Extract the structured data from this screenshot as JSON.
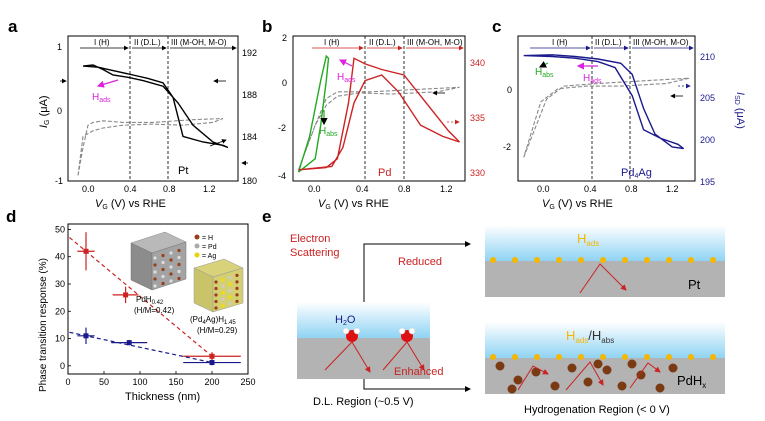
{
  "panels": {
    "a": {
      "letter": "a",
      "regions": [
        "I (H)",
        "II (D.L.)",
        "III (M-OH, M-O)"
      ],
      "label": "Pt",
      "hads": "H",
      "hads_sub": "ads",
      "xlabel": "V",
      "xlabel_sub": "G",
      "xlabel_rest": " (V) vs RHE",
      "ylabel": "I",
      "ylabel_sub": "G",
      "ylabel_rest": " (μA)",
      "xticks": [
        "0.0",
        "0.4",
        "0.8",
        "1.2"
      ],
      "yticks_left": [
        "1",
        "0",
        "-1"
      ],
      "yticks_right": [
        "192",
        "188",
        "184",
        "180"
      ]
    },
    "b": {
      "letter": "b",
      "regions": [
        "I (H)",
        "II (D.L.)",
        "III (M-OH, M-O)"
      ],
      "label": "Pd",
      "hads": "H",
      "hads_sub": "ads",
      "habs": "H",
      "habs_sub": "abs",
      "xlabel": "V",
      "xlabel_sub": "G",
      "xlabel_rest": " (V) vs RHE",
      "xticks": [
        "0.0",
        "0.4",
        "0.8",
        "1.2"
      ],
      "yticks_left": [
        "2",
        "0",
        "-2",
        "-4"
      ],
      "yticks_right": [
        "340",
        "335",
        "330"
      ]
    },
    "c": {
      "letter": "c",
      "regions": [
        "I (H)",
        "II (D.L.)",
        "III (M-OH, M-O)"
      ],
      "label": "Pd",
      "label_sub": "4",
      "label_rest": "Ag",
      "hads": "H",
      "hads_sub": "ads",
      "habs": "H",
      "habs_sub": "abs",
      "xlabel": "V",
      "xlabel_sub": "G",
      "xlabel_rest": " (V) vs RHE",
      "ylabel_right": "I",
      "ylabel_right_sub": "SD",
      "ylabel_right_rest": " (μA)",
      "xticks": [
        "0.0",
        "0.4",
        "0.8",
        "1.2"
      ],
      "yticks_left": [
        "0",
        "-2"
      ],
      "yticks_right": [
        "210",
        "205",
        "200",
        "195"
      ]
    },
    "d": {
      "letter": "d",
      "ylabel": "Phase transition response (%)",
      "xlabel": "Thickness (nm)",
      "xticks": [
        "0",
        "50",
        "100",
        "150",
        "200",
        "250"
      ],
      "yticks": [
        "0",
        "10",
        "20",
        "30",
        "40",
        "50"
      ],
      "legend": [
        "= H",
        "= Pd",
        "= Ag"
      ],
      "pdh_label": "PdH",
      "pdh_sub": "0.42",
      "pdh_ratio": "(H/M=0.42)",
      "pdagh_label": "(Pd",
      "pdagh_sub1": "4",
      "pdagh_mid": "Ag)H",
      "pdagh_sub2": "1.45",
      "pdagh_ratio": "(H/M=0.29)"
    },
    "e": {
      "letter": "e",
      "electron": "Electron",
      "scattering": "Scattering",
      "reduced": "Reduced",
      "enhanced": "Enhanced",
      "h2o": "H",
      "h2o_sub": "2",
      "h2o_rest": "O",
      "top_hads": "H",
      "top_hads_sub": "ads",
      "pt": "Pt",
      "bot_h1": "H",
      "bot_h1_sub": "ads",
      "bot_slash": "/H",
      "bot_h2_sub": "abs",
      "pdhx": "PdH",
      "pdhx_sub": "x",
      "dl_region": "D.L. Region (~0.5 V)",
      "hyd_region": "Hydrogenation Region (< 0 V)"
    }
  },
  "chart_data": [
    {
      "panel": "a",
      "type": "line",
      "xlabel": "VG (V) vs RHE",
      "ylabel": "IG (μA)",
      "ylim": [
        -1,
        1.6
      ],
      "xlim": [
        -0.25,
        1.45
      ],
      "y2lim": [
        180,
        193
      ],
      "series": [
        {
          "name": "IG",
          "style": "dashed",
          "color": "#888888",
          "x": [
            -0.15,
            -0.1,
            -0.05,
            0.0,
            0.1,
            0.3,
            0.6,
            1.0,
            1.3,
            1.2,
            0.9,
            0.6,
            0.3,
            0.1,
            0.0,
            -0.1,
            -0.15
          ],
          "y": [
            -0.9,
            -0.4,
            0.0,
            0.05,
            0.08,
            0.05,
            0.05,
            0.1,
            0.12,
            0.05,
            0.0,
            0.02,
            0.0,
            -0.05,
            -0.1,
            -0.2,
            -0.9
          ]
        },
        {
          "name": "ISD",
          "style": "solid",
          "color": "#000000",
          "x": [
            -0.1,
            0.0,
            0.1,
            0.2,
            0.35,
            0.5,
            0.7,
            0.85,
            1.0,
            1.2,
            1.35,
            1.3,
            1.1,
            0.9,
            0.8,
            0.7,
            0.55,
            0.4,
            0.2,
            0.05,
            -0.1
          ],
          "y": [
            190.3,
            190.4,
            190.0,
            189.5,
            189.3,
            189.0,
            188.5,
            187.0,
            185.0,
            183.5,
            183.0,
            183.2,
            183.5,
            184.0,
            187.5,
            188.8,
            189.2,
            189.5,
            189.9,
            190.2,
            190.3
          ]
        }
      ]
    },
    {
      "panel": "b",
      "type": "line",
      "xlabel": "VG (V) vs RHE",
      "ylim": [
        -4,
        2.5
      ],
      "xlim": [
        -0.3,
        1.25
      ],
      "y2lim": [
        329,
        342
      ],
      "series": [
        {
          "name": "IG",
          "style": "dashed",
          "color": "#888888",
          "x": [
            -0.25,
            -0.1,
            0.0,
            0.1,
            0.4,
            0.8,
            1.2,
            1.0,
            0.6,
            0.3,
            0.1,
            0.0,
            -0.1,
            -0.25
          ],
          "y": [
            -3.5,
            -1.5,
            -0.3,
            0.0,
            0.0,
            0.1,
            0.2,
            0.0,
            -0.1,
            -0.05,
            -0.2,
            -0.6,
            -1.5,
            -3.5
          ]
        },
        {
          "name": "IG green",
          "style": "solid",
          "color": "#22aa22",
          "x": [
            -0.25,
            -0.15,
            -0.05,
            0.0,
            0.02,
            0.0,
            -0.05,
            -0.1,
            -0.25
          ],
          "y": [
            -3.6,
            -2.0,
            0.5,
            1.6,
            1.5,
            0.5,
            -1.5,
            -3.0,
            -3.6
          ]
        },
        {
          "name": "ISD",
          "style": "solid",
          "color": "#cc2222",
          "x": [
            -0.25,
            0.0,
            0.1,
            0.2,
            0.25,
            0.35,
            0.5,
            0.7,
            0.9,
            1.1,
            1.2,
            1.05,
            0.85,
            0.65,
            0.5,
            0.35,
            0.25,
            0.15,
            0.05,
            -0.25
          ],
          "y": [
            330.0,
            330.2,
            331.0,
            336.0,
            340.0,
            339.5,
            339.0,
            338.5,
            336.0,
            333.5,
            332.5,
            333.0,
            334.0,
            337.0,
            338.5,
            338.0,
            336.0,
            332.0,
            330.3,
            330.0
          ]
        }
      ]
    },
    {
      "panel": "c",
      "type": "line",
      "xlabel": "VG (V) vs RHE",
      "ylabel_right": "ISD (μA)",
      "ylim": [
        -3.5,
        2
      ],
      "xlim": [
        -0.3,
        1.25
      ],
      "y2lim": [
        195,
        212
      ],
      "series": [
        {
          "name": "IG",
          "style": "dashed",
          "color": "#888888",
          "x": [
            -0.25,
            -0.15,
            -0.05,
            0.1,
            0.4,
            0.8,
            1.2,
            1.0,
            0.6,
            0.3,
            0.05,
            -0.1,
            -0.25
          ],
          "y": [
            -2.6,
            -1.5,
            -0.4,
            0.1,
            0.2,
            0.3,
            0.4,
            0.2,
            0.1,
            0.1,
            0.0,
            -0.5,
            -2.6
          ]
        },
        {
          "name": "ISD",
          "style": "solid",
          "color": "#1a1a8c",
          "x": [
            -0.25,
            0.0,
            0.2,
            0.4,
            0.6,
            0.7,
            0.8,
            0.9,
            1.05,
            1.15,
            1.1,
            0.95,
            0.8,
            0.7,
            0.55,
            0.4,
            0.2,
            0.0,
            -0.25
          ],
          "y": [
            209.7,
            209.8,
            209.6,
            209.3,
            208.8,
            207.5,
            203.5,
            200.5,
            199.0,
            198.8,
            199.3,
            200.0,
            201.0,
            205.0,
            208.3,
            209.0,
            209.4,
            209.6,
            209.7
          ]
        }
      ]
    },
    {
      "panel": "d",
      "type": "scatter",
      "xlabel": "Thickness (nm)",
      "ylabel": "Phase transition response (%)",
      "xlim": [
        0,
        250
      ],
      "ylim": [
        -3,
        52
      ],
      "series": [
        {
          "color": "#cc2222",
          "x": [
            25,
            80,
            200
          ],
          "y": [
            42,
            26,
            3.5
          ],
          "xerr": [
            12,
            18,
            40
          ],
          "yerr": [
            7,
            3,
            1.5
          ]
        },
        {
          "color": "#1a1a8c",
          "x": [
            25,
            85,
            200
          ],
          "y": [
            11,
            8.5,
            1.2
          ],
          "xerr": [
            12,
            25,
            40
          ],
          "yerr": [
            3,
            1,
            1
          ]
        }
      ]
    }
  ]
}
